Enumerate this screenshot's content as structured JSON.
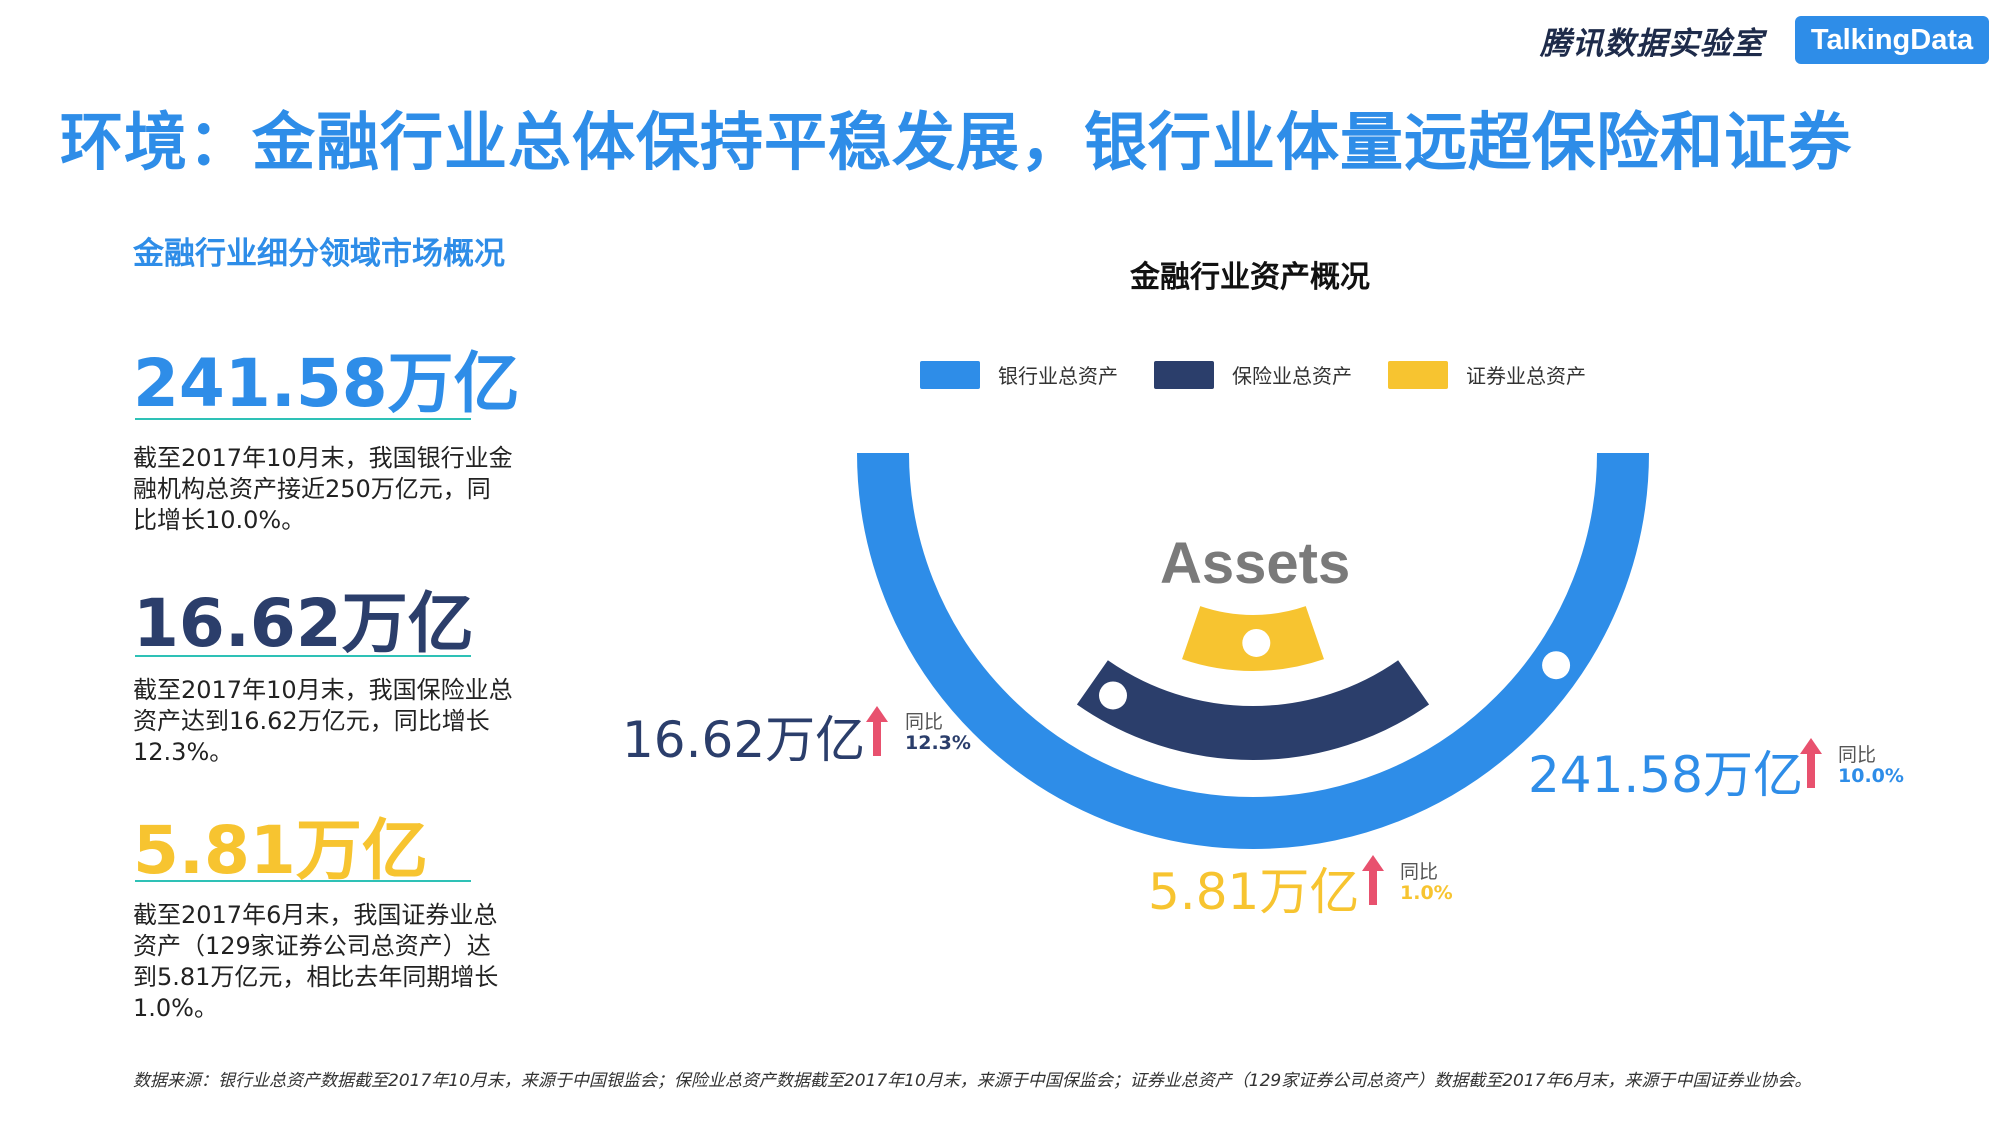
{
  "header": {
    "brand_tencent": "腾讯数据实验室",
    "brand_td": "TalkingData"
  },
  "title": "环境：金融行业总体保持平稳发展，银行业体量远超保险和证券",
  "left_panel": {
    "section_title": "金融行业细分领域市场概况",
    "items": [
      {
        "value": "241.58万亿",
        "desc": "截至2017年10月末，我国银行业金融机构总资产接近250万亿元，同比增长10.0%。",
        "color": "#2e8de8"
      },
      {
        "value": "16.62万亿",
        "desc": "截至2017年10月末，我国保险业总资产达到16.62万亿元，同比增长12.3%。",
        "color": "#2b3e6b"
      },
      {
        "value": "5.81万亿",
        "desc": "截至2017年6月末，我国证券业总资产（129家证券公司总资产）达到5.81万亿元，相比去年同期增长1.0%。",
        "color": "#f7c430"
      }
    ]
  },
  "chart_data": {
    "type": "semicircle-rings",
    "title": "金融行业资产概况",
    "center_text": "Assets",
    "series": [
      {
        "name": "银行业总资产",
        "value": 241.58,
        "unit": "万亿",
        "value_label": "241.58万亿",
        "yoy_label": "同比",
        "yoy": "10.0%",
        "color": "#2e8de8",
        "arc_span_deg": 180
      },
      {
        "name": "保险业总资产",
        "value": 16.62,
        "unit": "万亿",
        "value_label": "16.62万亿",
        "yoy_label": "同比",
        "yoy": "12.3%",
        "color": "#2b3e6b",
        "arc_span_deg": 70
      },
      {
        "name": "证券业总资产",
        "value": 5.81,
        "unit": "万亿",
        "value_label": "5.81万亿",
        "yoy_label": "同比",
        "yoy": "1.0%",
        "color": "#f7c430",
        "arc_span_deg": 38
      }
    ],
    "arrow_color": "#e8516e"
  },
  "footnote": "数据来源：银行业总资产数据截至2017年10月末，来源于中国银监会；保险业总资产数据截至2017年10月末，来源于中国保监会；证券业总资产（129家证券公司总资产）数据截至2017年6月末，来源于中国证券业协会。"
}
